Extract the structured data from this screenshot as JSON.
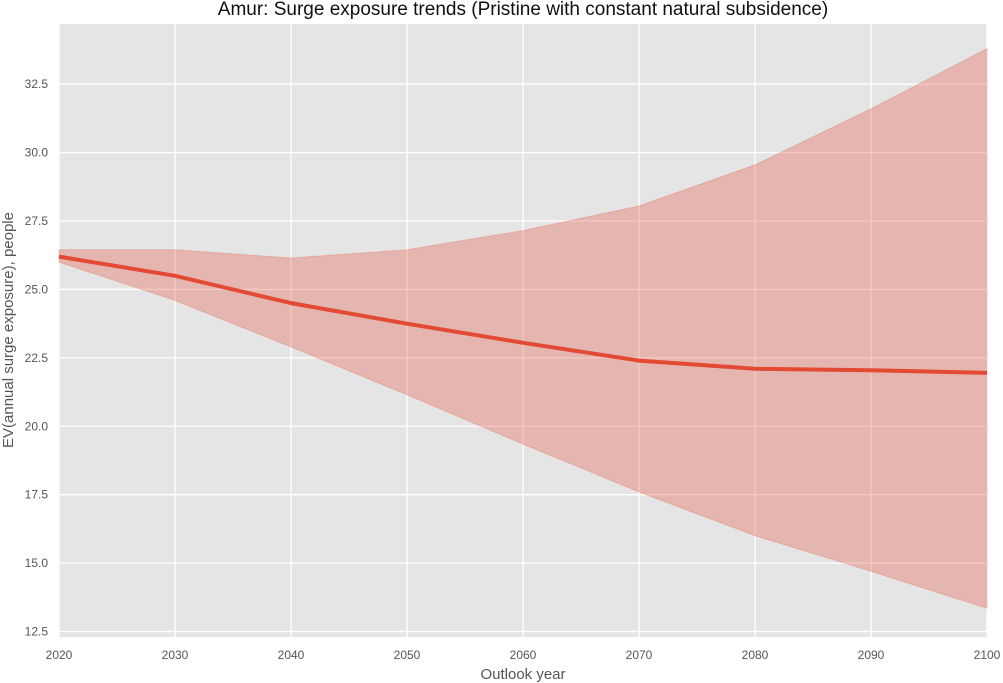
{
  "chart_data": {
    "type": "line",
    "title": "Amur: Surge exposure trends (Pristine with constant natural subsidence)",
    "xlabel": "Outlook year",
    "ylabel": "EV(annual surge exposure), people",
    "xlim": [
      2020,
      2100
    ],
    "ylim": [
      12.3,
      34.7
    ],
    "xticks": [
      "2020",
      "2030",
      "2040",
      "2050",
      "2060",
      "2070",
      "2080",
      "2090",
      "2100"
    ],
    "yticks": [
      "12.5",
      "15.0",
      "17.5",
      "20.0",
      "22.5",
      "25.0",
      "27.5",
      "30.0",
      "32.5"
    ],
    "grid": true,
    "legend": "none",
    "x": [
      2020,
      2030,
      2040,
      2050,
      2060,
      2070,
      2080,
      2090,
      2100
    ],
    "series": [
      {
        "values": [
          26.2,
          25.5,
          24.5,
          23.75,
          23.05,
          22.4,
          22.1,
          22.05,
          21.95
        ],
        "lower": [
          26.0,
          24.6,
          22.9,
          21.15,
          19.35,
          17.6,
          16.0,
          14.7,
          13.35
        ],
        "upper": [
          26.45,
          26.45,
          26.15,
          26.45,
          27.15,
          28.05,
          29.55,
          31.6,
          33.8
        ],
        "color": "#e24a33",
        "band_color": "#e24a33"
      }
    ],
    "colors": {
      "plot_background": "#e5e5e5",
      "grid": "#ffffff",
      "line": "#e24a33",
      "band": "#e24a33"
    }
  }
}
